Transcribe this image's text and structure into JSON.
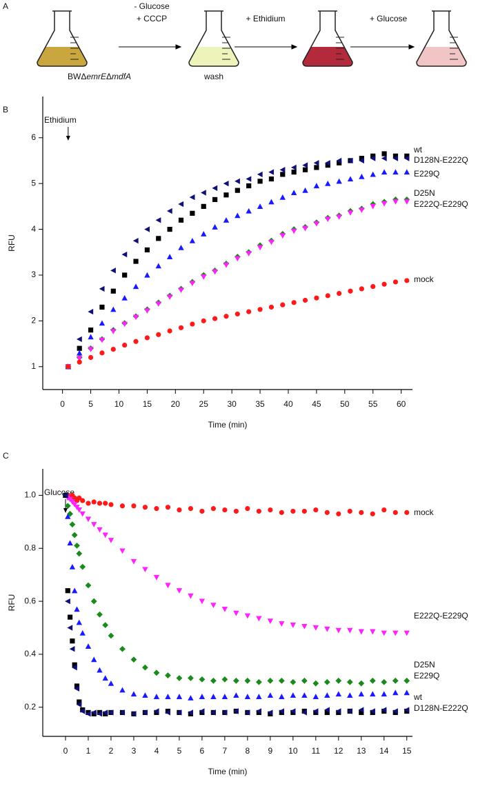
{
  "diagram": {
    "panel_label": "A",
    "strain": [
      "BWΔ",
      "emrE",
      "Δ",
      "mdfA"
    ],
    "wash": "wash",
    "steps": [
      [
        "- Glucose",
        "+ CCCP"
      ],
      [
        "+ Ethidium"
      ],
      [
        "+ Glucose"
      ]
    ]
  },
  "chart_data": [
    {
      "type": "scatter",
      "panel_label": "B",
      "x_label": "Time (min)",
      "y_label": "RFU",
      "annotation": "Ethidium",
      "xlim": [
        -3.5,
        62
      ],
      "ylim": [
        0.5,
        6.9
      ],
      "xticks": [
        0,
        5,
        10,
        15,
        20,
        25,
        30,
        35,
        40,
        45,
        50,
        55,
        60
      ],
      "yticks": [
        1,
        2,
        3,
        4,
        5,
        6
      ],
      "x": [
        1,
        3,
        5,
        7,
        9,
        11,
        13,
        15,
        17,
        19,
        21,
        23,
        25,
        27,
        29,
        31,
        33,
        35,
        37,
        39,
        41,
        43,
        45,
        47,
        49,
        51,
        53,
        55,
        57,
        59,
        61
      ],
      "series": [
        {
          "name": "wt",
          "color": "#000000",
          "marker": "square",
          "values": [
            1,
            1.4,
            1.8,
            2.3,
            2.65,
            3.0,
            3.3,
            3.55,
            3.8,
            4.0,
            4.2,
            4.35,
            4.5,
            4.65,
            4.75,
            4.85,
            4.95,
            5.05,
            5.1,
            5.2,
            5.25,
            5.3,
            5.35,
            5.4,
            5.45,
            5.5,
            5.55,
            5.6,
            5.65,
            5.6,
            5.6
          ]
        },
        {
          "name": "D128N-E222Q",
          "color": "#10107a",
          "marker": "triangle-left",
          "values": [
            1,
            1.6,
            2.2,
            2.7,
            3.1,
            3.45,
            3.75,
            4.0,
            4.2,
            4.4,
            4.55,
            4.7,
            4.8,
            4.9,
            5.0,
            5.05,
            5.1,
            5.2,
            5.25,
            5.3,
            5.35,
            5.4,
            5.45,
            5.45,
            5.5,
            5.5,
            5.5,
            5.55,
            5.55,
            5.55,
            5.55
          ]
        },
        {
          "name": "E229Q",
          "color": "#1a1aff",
          "marker": "triangle-up",
          "values": [
            1,
            1.3,
            1.65,
            1.95,
            2.25,
            2.5,
            2.75,
            3.0,
            3.2,
            3.4,
            3.6,
            3.75,
            3.9,
            4.05,
            4.2,
            4.3,
            4.4,
            4.5,
            4.6,
            4.7,
            4.8,
            4.85,
            4.95,
            5.0,
            5.05,
            5.1,
            5.15,
            5.2,
            5.25,
            5.25,
            5.25
          ]
        },
        {
          "name": "D25N",
          "color": "#1a8a1a",
          "marker": "diamond",
          "values": [
            1,
            1.2,
            1.4,
            1.6,
            1.8,
            1.95,
            2.1,
            2.25,
            2.4,
            2.55,
            2.7,
            2.85,
            3.0,
            3.1,
            3.25,
            3.4,
            3.5,
            3.65,
            3.75,
            3.9,
            4.0,
            4.05,
            4.15,
            4.25,
            4.3,
            4.4,
            4.45,
            4.55,
            4.6,
            4.65,
            4.65
          ]
        },
        {
          "name": "E222Q-E229Q",
          "color": "#ff22ff",
          "marker": "triangle-down",
          "values": [
            1,
            1.18,
            1.38,
            1.58,
            1.77,
            1.93,
            2.08,
            2.22,
            2.37,
            2.52,
            2.67,
            2.82,
            2.96,
            3.07,
            3.22,
            3.36,
            3.47,
            3.6,
            3.72,
            3.86,
            3.96,
            4.02,
            4.12,
            4.22,
            4.27,
            4.36,
            4.42,
            4.5,
            4.56,
            4.6,
            4.6
          ]
        },
        {
          "name": "mock",
          "color": "#ff1a1a",
          "marker": "circle",
          "values": [
            1,
            1.1,
            1.2,
            1.3,
            1.38,
            1.47,
            1.55,
            1.63,
            1.7,
            1.78,
            1.85,
            1.93,
            2.0,
            2.05,
            2.1,
            2.15,
            2.2,
            2.25,
            2.3,
            2.35,
            2.4,
            2.45,
            2.5,
            2.55,
            2.6,
            2.65,
            2.7,
            2.75,
            2.8,
            2.85,
            2.88
          ]
        }
      ]
    },
    {
      "type": "scatter",
      "panel_label": "C",
      "x_label": "Time (min)",
      "y_label": "RFU",
      "annotation": "Glucose",
      "xlim": [
        -1,
        15.25
      ],
      "ylim": [
        0.09,
        1.1
      ],
      "xticks": [
        0,
        1,
        2,
        3,
        4,
        5,
        6,
        7,
        8,
        9,
        10,
        11,
        12,
        13,
        14,
        15
      ],
      "yticks": [
        0.2,
        0.4,
        0.6,
        0.8,
        {
          "value": 1,
          "label": "1.0"
        }
      ],
      "x": [
        0,
        0.1,
        0.2,
        0.3,
        0.4,
        0.5,
        0.6,
        0.75,
        1,
        1.25,
        1.5,
        1.75,
        2,
        2.5,
        3,
        3.5,
        4,
        4.5,
        5,
        5.5,
        6,
        6.5,
        7,
        7.5,
        8,
        8.5,
        9,
        9.5,
        10,
        10.5,
        11,
        11.5,
        12,
        12.5,
        13,
        13.5,
        14,
        14.5,
        15
      ],
      "series": [
        {
          "name": "mock",
          "color": "#ff1a1a",
          "marker": "circle",
          "values": [
            1,
            1,
            0.99,
            1,
            0.99,
            0.98,
            0.99,
            0.98,
            0.97,
            0.975,
            0.97,
            0.97,
            0.965,
            0.96,
            0.96,
            0.955,
            0.95,
            0.955,
            0.945,
            0.95,
            0.94,
            0.95,
            0.945,
            0.94,
            0.95,
            0.94,
            0.945,
            0.935,
            0.94,
            0.94,
            0.945,
            0.935,
            0.93,
            0.94,
            0.935,
            0.93,
            0.945,
            0.935,
            0.935
          ]
        },
        {
          "name": "E222Q-E229Q",
          "color": "#ff22ff",
          "marker": "triangle-down",
          "values": [
            1,
            0.99,
            0.985,
            0.975,
            0.965,
            0.955,
            0.945,
            0.93,
            0.91,
            0.89,
            0.87,
            0.85,
            0.83,
            0.79,
            0.75,
            0.72,
            0.69,
            0.66,
            0.64,
            0.62,
            0.6,
            0.585,
            0.57,
            0.555,
            0.545,
            0.535,
            0.525,
            0.515,
            0.51,
            0.505,
            0.5,
            0.495,
            0.49,
            0.49,
            0.485,
            0.485,
            0.48,
            0.48,
            0.48
          ]
        },
        {
          "name": "D25N",
          "color": "#1a8a1a",
          "marker": "diamond",
          "values": [
            1,
            0.96,
            0.93,
            0.89,
            0.85,
            0.81,
            0.78,
            0.73,
            0.66,
            0.6,
            0.55,
            0.51,
            0.47,
            0.42,
            0.38,
            0.35,
            0.33,
            0.32,
            0.31,
            0.31,
            0.305,
            0.3,
            0.305,
            0.3,
            0.3,
            0.295,
            0.3,
            0.3,
            0.295,
            0.3,
            0.29,
            0.295,
            0.3,
            0.295,
            0.29,
            0.3,
            0.295,
            0.3,
            0.3
          ]
        },
        {
          "name": "E229Q",
          "color": "#1a1aff",
          "marker": "triangle-up",
          "values": [
            1,
            0.92,
            0.82,
            0.73,
            0.64,
            0.57,
            0.52,
            0.48,
            0.43,
            0.38,
            0.34,
            0.31,
            0.29,
            0.265,
            0.25,
            0.245,
            0.24,
            0.24,
            0.24,
            0.235,
            0.24,
            0.24,
            0.24,
            0.245,
            0.24,
            0.24,
            0.245,
            0.24,
            0.245,
            0.245,
            0.24,
            0.245,
            0.25,
            0.245,
            0.25,
            0.25,
            0.25,
            0.255,
            0.255
          ]
        },
        {
          "name": "wt",
          "color": "#000000",
          "marker": "square",
          "values": [
            1,
            0.64,
            0.54,
            0.45,
            0.36,
            0.28,
            0.22,
            0.19,
            0.18,
            0.175,
            0.18,
            0.175,
            0.18,
            0.18,
            0.175,
            0.18,
            0.18,
            0.185,
            0.18,
            0.175,
            0.18,
            0.18,
            0.18,
            0.185,
            0.18,
            0.18,
            0.175,
            0.18,
            0.18,
            0.185,
            0.18,
            0.18,
            0.18,
            0.185,
            0.18,
            0.18,
            0.185,
            0.18,
            0.185
          ]
        },
        {
          "name": "D128N-E222Q",
          "color": "#10107a",
          "marker": "triangle-left",
          "values": [
            1,
            0.6,
            0.5,
            0.42,
            0.35,
            0.27,
            0.21,
            0.185,
            0.175,
            0.18,
            0.175,
            0.18,
            0.18,
            0.18,
            0.175,
            0.18,
            0.185,
            0.18,
            0.18,
            0.18,
            0.185,
            0.18,
            0.18,
            0.185,
            0.18,
            0.185,
            0.18,
            0.185,
            0.185,
            0.18,
            0.185,
            0.19,
            0.185,
            0.185,
            0.19,
            0.185,
            0.19,
            0.185,
            0.19
          ]
        }
      ]
    }
  ]
}
